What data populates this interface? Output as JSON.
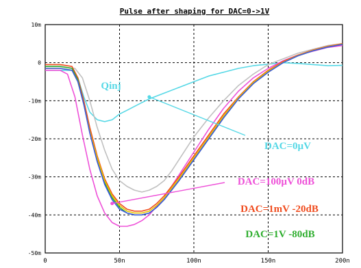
{
  "chart_data": {
    "type": "line",
    "title": "Pulse after shaping for DAC=0->1V",
    "xlabel": "",
    "ylabel": "",
    "xlim": [
      0,
      200
    ],
    "ylim": [
      -50,
      10
    ],
    "x_ticks": [
      0,
      50,
      100,
      150,
      200
    ],
    "x_tick_labels": [
      "0",
      "50n",
      "100n",
      "150n",
      "200n"
    ],
    "y_ticks": [
      10,
      0,
      -10,
      -20,
      -30,
      -40,
      -50
    ],
    "y_tick_labels": [
      "10m",
      "0",
      "-10m",
      "-20m",
      "-30m",
      "-40m",
      "-50m"
    ],
    "grid": true,
    "series": [
      {
        "name": "Qinj",
        "color": "#55d8e6",
        "x": [
          0,
          10,
          18,
          22,
          26,
          30,
          35,
          40,
          45,
          50,
          55,
          60,
          65,
          70,
          80,
          90,
          100,
          110,
          120,
          130,
          140,
          150,
          160,
          170,
          180,
          190,
          200
        ],
        "y": [
          -2,
          -2,
          -2,
          -4,
          -9,
          -13,
          -15,
          -15.5,
          -15,
          -13.5,
          -12.5,
          -11.5,
          -10.5,
          -9.5,
          -8,
          -6.5,
          -5,
          -3.5,
          -2.5,
          -1.5,
          -0.8,
          -0.4,
          0,
          -0.2,
          -0.5,
          -0.8,
          -0.7
        ]
      },
      {
        "name": "DAC=0µV",
        "color": "#c0c0c0",
        "x": [
          0,
          10,
          20,
          25,
          30,
          35,
          40,
          45,
          50,
          55,
          60,
          65,
          70,
          75,
          80,
          85,
          90,
          95,
          100,
          110,
          120,
          130,
          140,
          150,
          160,
          170,
          180,
          190,
          200
        ],
        "y": [
          -1,
          -1,
          -1.5,
          -4,
          -10,
          -17,
          -23,
          -28,
          -31,
          -32.5,
          -33.5,
          -34,
          -33.5,
          -32.5,
          -31,
          -28.5,
          -25.5,
          -22.5,
          -19.5,
          -14.5,
          -10,
          -6,
          -3,
          -0.5,
          1,
          2.5,
          3.5,
          4.5,
          5
        ]
      },
      {
        "name": "DAC=100µV 0dB",
        "color": "#ee50d8",
        "x": [
          0,
          10,
          15,
          20,
          25,
          30,
          35,
          40,
          45,
          50,
          55,
          60,
          65,
          70,
          80,
          90,
          100,
          110,
          120,
          130,
          140,
          150,
          160,
          170,
          180,
          190,
          200
        ],
        "y": [
          -2,
          -2,
          -3,
          -9,
          -19,
          -28,
          -35,
          -39.5,
          -42,
          -43,
          -43,
          -42.5,
          -41.5,
          -40,
          -35.5,
          -29.5,
          -23.5,
          -17.5,
          -12,
          -7.5,
          -4,
          -1.5,
          0.5,
          2,
          3,
          4,
          4.5
        ]
      },
      {
        "name": "DAC=1mV -20dB",
        "color": "#f04c1e",
        "x": [
          0,
          10,
          18,
          22,
          26,
          30,
          35,
          40,
          45,
          50,
          55,
          60,
          65,
          70,
          75,
          80,
          90,
          100,
          110,
          120,
          130,
          140,
          150,
          160,
          170,
          180,
          190,
          200
        ],
        "y": [
          -0.5,
          -0.5,
          -1,
          -4,
          -10,
          -17,
          -24.5,
          -30.5,
          -34.5,
          -37,
          -38.5,
          -39,
          -39,
          -38.5,
          -37,
          -35,
          -30,
          -24.5,
          -19,
          -13.5,
          -9,
          -5,
          -2,
          0.3,
          2,
          3.3,
          4.3,
          5
        ]
      },
      {
        "name": "DAC=1V -80dB",
        "color": "#2fae2f",
        "x": [
          0,
          10,
          18,
          22,
          26,
          30,
          35,
          40,
          45,
          50,
          55,
          60,
          65,
          70,
          75,
          80,
          90,
          100,
          110,
          120,
          130,
          140,
          150,
          160,
          170,
          180,
          190,
          200
        ],
        "y": [
          -1,
          -1,
          -1.5,
          -4.5,
          -11,
          -18,
          -25.5,
          -31.5,
          -35.5,
          -38,
          -39.5,
          -40,
          -40,
          -39.5,
          -38,
          -36,
          -31,
          -25.5,
          -20,
          -14.5,
          -9.5,
          -5.5,
          -2.5,
          0,
          1.8,
          3.1,
          4.1,
          4.8
        ]
      },
      {
        "name": "",
        "color": "#e6c400",
        "x": [
          0,
          10,
          18,
          22,
          26,
          30,
          35,
          40,
          45,
          50,
          55,
          60,
          65,
          70,
          75,
          80,
          90,
          100,
          110,
          120,
          130,
          140,
          150,
          160,
          170,
          180,
          190,
          200
        ],
        "y": [
          -1.5,
          -1.5,
          -2,
          -5,
          -11,
          -18,
          -25,
          -31,
          -35,
          -37.5,
          -39,
          -39.5,
          -39.5,
          -39,
          -37.5,
          -35.5,
          -30.5,
          -25,
          -19.5,
          -14,
          -9.2,
          -5.2,
          -2.2,
          0.1,
          1.9,
          3.2,
          4.2,
          4.9
        ]
      },
      {
        "name": "",
        "color": "#3a55e0",
        "x": [
          0,
          10,
          18,
          22,
          26,
          30,
          35,
          40,
          45,
          50,
          55,
          60,
          65,
          70,
          75,
          80,
          90,
          100,
          110,
          120,
          130,
          140,
          150,
          160,
          170,
          180,
          190,
          200
        ],
        "y": [
          -1.5,
          -1.5,
          -2,
          -5,
          -11,
          -18.5,
          -26,
          -32,
          -36,
          -38.5,
          -39.5,
          -40,
          -40,
          -39.5,
          -38,
          -36,
          -31,
          -25.5,
          -20,
          -14.5,
          -9.5,
          -5.5,
          -2.5,
          0,
          1.8,
          3.1,
          4.1,
          4.8
        ]
      }
    ],
    "annotations": [
      {
        "text": "Qinj",
        "color": "#55d8e6"
      },
      {
        "text": "DAC=0µV",
        "color": "#55d8e6",
        "arrow_to": [
          70,
          -9
        ]
      },
      {
        "text": "DAC=100µV 0dB",
        "color": "#ee50d8",
        "arrow_to": [
          45,
          -37
        ]
      },
      {
        "text": "DAC=1mV -20dB",
        "color": "#f04c1e"
      },
      {
        "text": "DAC=1V -80dB",
        "color": "#2fae2f"
      }
    ]
  }
}
